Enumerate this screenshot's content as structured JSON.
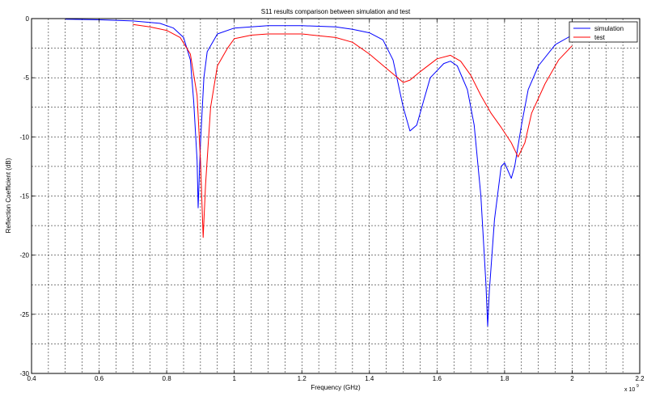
{
  "chart_data": {
    "type": "line",
    "title": "S11 results comparison between simulation and test",
    "xlabel": "Frequency (GHz)",
    "ylabel": "Reflection Coefficient (dB)",
    "x_exponent_label": "x 10",
    "x_exponent_power": "9",
    "xlim": [
      0.4,
      2.2
    ],
    "ylim": [
      -30,
      0
    ],
    "x_ticks": [
      0.4,
      0.6,
      0.8,
      1,
      1.2,
      1.4,
      1.6,
      1.8,
      2,
      2.2
    ],
    "x_tick_labels": [
      "0.4",
      "0.6",
      "0.8",
      "1",
      "1.2",
      "1.4",
      "1.6",
      "1.8",
      "2",
      "2.2"
    ],
    "y_ticks": [
      0,
      -5,
      -10,
      -15,
      -20,
      -25,
      -30
    ],
    "y_tick_labels": [
      "0",
      "-5",
      "-10",
      "-15",
      "-20",
      "-25",
      "-30"
    ],
    "grid": true,
    "legend_position": "top-right",
    "series": [
      {
        "name": "simulation",
        "color": "#0000ff",
        "points": [
          [
            0.5,
            -0.05
          ],
          [
            0.6,
            -0.1
          ],
          [
            0.7,
            -0.2
          ],
          [
            0.78,
            -0.4
          ],
          [
            0.82,
            -0.8
          ],
          [
            0.85,
            -1.6
          ],
          [
            0.87,
            -3.5
          ],
          [
            0.88,
            -7.0
          ],
          [
            0.89,
            -12.0
          ],
          [
            0.893,
            -16.0
          ],
          [
            0.9,
            -10.5
          ],
          [
            0.91,
            -5.0
          ],
          [
            0.92,
            -2.8
          ],
          [
            0.95,
            -1.3
          ],
          [
            1.0,
            -0.8
          ],
          [
            1.1,
            -0.6
          ],
          [
            1.2,
            -0.6
          ],
          [
            1.3,
            -0.7
          ],
          [
            1.35,
            -0.9
          ],
          [
            1.4,
            -1.2
          ],
          [
            1.44,
            -1.8
          ],
          [
            1.47,
            -3.5
          ],
          [
            1.5,
            -7.5
          ],
          [
            1.52,
            -9.5
          ],
          [
            1.54,
            -9.0
          ],
          [
            1.56,
            -7.0
          ],
          [
            1.58,
            -5.0
          ],
          [
            1.62,
            -3.8
          ],
          [
            1.64,
            -3.6
          ],
          [
            1.66,
            -4.0
          ],
          [
            1.69,
            -6.0
          ],
          [
            1.71,
            -9.0
          ],
          [
            1.73,
            -15.0
          ],
          [
            1.745,
            -22.5
          ],
          [
            1.75,
            -26.0
          ],
          [
            1.755,
            -23.0
          ],
          [
            1.77,
            -17.0
          ],
          [
            1.79,
            -12.5
          ],
          [
            1.8,
            -12.2
          ],
          [
            1.82,
            -13.5
          ],
          [
            1.83,
            -12.5
          ],
          [
            1.85,
            -9.0
          ],
          [
            1.87,
            -6.0
          ],
          [
            1.9,
            -4.0
          ],
          [
            1.95,
            -2.2
          ],
          [
            2.0,
            -1.4
          ],
          [
            2.05,
            -1.0
          ],
          [
            2.1,
            -0.8
          ]
        ]
      },
      {
        "name": "test",
        "color": "#ff0000",
        "points": [
          [
            0.7,
            -0.5
          ],
          [
            0.75,
            -0.7
          ],
          [
            0.8,
            -1.0
          ],
          [
            0.84,
            -1.6
          ],
          [
            0.87,
            -3.0
          ],
          [
            0.89,
            -6.5
          ],
          [
            0.9,
            -12.0
          ],
          [
            0.908,
            -18.5
          ],
          [
            0.915,
            -14.0
          ],
          [
            0.93,
            -7.5
          ],
          [
            0.95,
            -4.0
          ],
          [
            0.98,
            -2.5
          ],
          [
            1.0,
            -1.7
          ],
          [
            1.05,
            -1.4
          ],
          [
            1.1,
            -1.3
          ],
          [
            1.2,
            -1.3
          ],
          [
            1.3,
            -1.6
          ],
          [
            1.35,
            -2.0
          ],
          [
            1.4,
            -3.0
          ],
          [
            1.45,
            -4.2
          ],
          [
            1.5,
            -5.4
          ],
          [
            1.52,
            -5.2
          ],
          [
            1.55,
            -4.5
          ],
          [
            1.6,
            -3.4
          ],
          [
            1.64,
            -3.1
          ],
          [
            1.67,
            -3.6
          ],
          [
            1.7,
            -4.8
          ],
          [
            1.73,
            -6.5
          ],
          [
            1.76,
            -8.0
          ],
          [
            1.79,
            -9.2
          ],
          [
            1.82,
            -10.5
          ],
          [
            1.84,
            -11.7
          ],
          [
            1.86,
            -10.5
          ],
          [
            1.88,
            -8.0
          ],
          [
            1.92,
            -5.5
          ],
          [
            1.96,
            -3.5
          ],
          [
            2.0,
            -2.3
          ]
        ]
      }
    ]
  }
}
